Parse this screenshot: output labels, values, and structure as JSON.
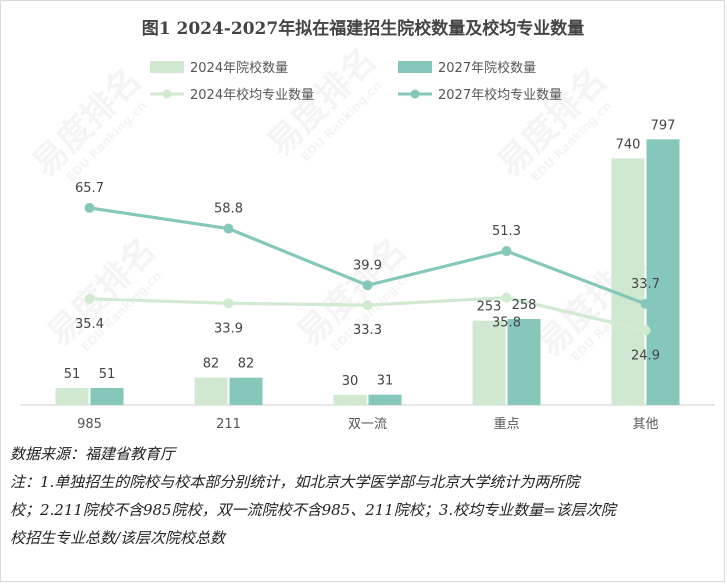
{
  "chart_data": {
    "type": "bar",
    "title": "图1  2024-2027年拟在福建招生院校数量及校均专业数量",
    "categories": [
      "985",
      "211",
      "双一流",
      "重点",
      "其他"
    ],
    "series": [
      {
        "name": "2024年院校数量",
        "kind": "bar",
        "color": "#cfe8cf",
        "values": [
          51,
          82,
          30,
          253,
          740
        ]
      },
      {
        "name": "2027年院校数量",
        "kind": "bar",
        "color": "#86c7bb",
        "values": [
          51,
          82,
          31,
          258,
          797
        ]
      },
      {
        "name": "2024年校均专业数量",
        "kind": "line",
        "color": "#d2ead2",
        "values": [
          35.4,
          33.9,
          33.3,
          35.8,
          24.9
        ]
      },
      {
        "name": "2027年校均专业数量",
        "kind": "line",
        "color": "#86c7bb",
        "values": [
          65.7,
          58.8,
          39.9,
          51.3,
          33.7
        ]
      }
    ],
    "bar_axis_max": 900,
    "line_axis_max": 100,
    "legend_position": "top",
    "grid": false
  },
  "footer": {
    "source": "数据来源：福建省教育厅",
    "note_line1": "注：1.单独招生的院校与校本部分别统计，如北京大学医学部与北京大学统计为两所院",
    "note_line2": "校；2.211院校不含985院校，双一流院校不含985、211院校；3.校均专业数量=该层次院",
    "note_line3": "校招生专业总数/该层次院校总数"
  },
  "watermark": {
    "brand": "易度排名",
    "sub": "EDU Ranking.cn"
  }
}
